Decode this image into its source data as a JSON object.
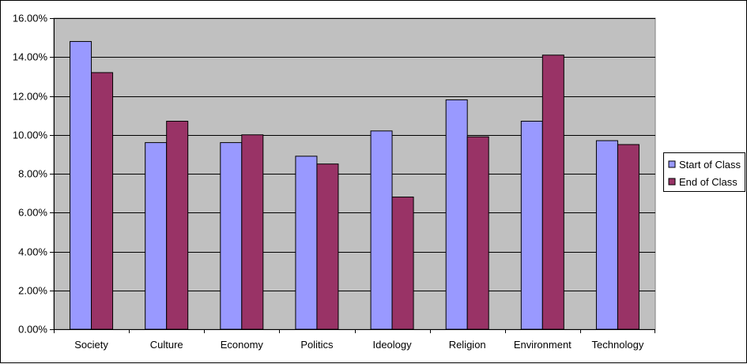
{
  "chart_data": {
    "type": "bar",
    "title": "",
    "xlabel": "",
    "ylabel": "",
    "categories": [
      "Society",
      "Culture",
      "Economy",
      "Politics",
      "Ideology",
      "Religion",
      "Environment",
      "Technology"
    ],
    "series": [
      {
        "name": "Start of Class",
        "color": "#9999FF",
        "values": [
          14.8,
          9.6,
          9.6,
          8.9,
          10.2,
          11.8,
          10.7,
          9.7
        ]
      },
      {
        "name": "End of Class",
        "color": "#993366",
        "values": [
          13.2,
          10.7,
          10.0,
          8.5,
          6.8,
          9.9,
          14.1,
          9.5
        ]
      }
    ],
    "ylim": [
      0,
      16
    ],
    "yticks": [
      0,
      2,
      4,
      6,
      8,
      10,
      12,
      14,
      16
    ],
    "ytick_labels": [
      "0.00%",
      "2.00%",
      "4.00%",
      "6.00%",
      "8.00%",
      "10.00%",
      "12.00%",
      "14.00%",
      "16.00%"
    ],
    "grid": true,
    "plot_background": "#C0C0C0",
    "legend_position": "right"
  }
}
